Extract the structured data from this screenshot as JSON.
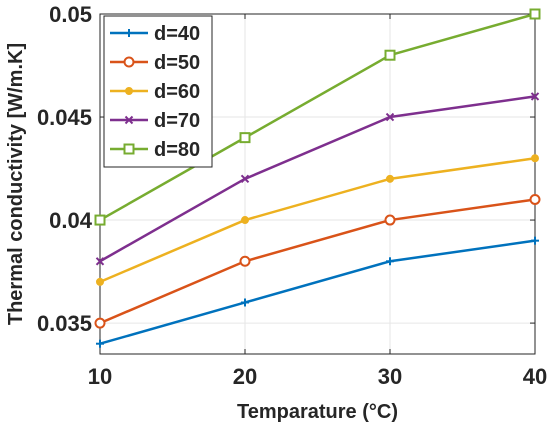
{
  "chart_data": {
    "type": "line",
    "xlabel": "Temparature (°C)",
    "ylabel": "Thermal conductivity [W/m.K]",
    "x": [
      10,
      20,
      30,
      40
    ],
    "xlim": [
      10,
      40
    ],
    "ylim": [
      0.0335,
      0.05
    ],
    "x_ticks": [
      "10",
      "20",
      "30",
      "40"
    ],
    "y_ticks": [
      "0.035",
      "0.04",
      "0.045",
      "0.05"
    ],
    "y_tick_values": [
      0.035,
      0.04,
      0.045,
      0.05
    ],
    "grid": true,
    "legend_position": "top-left",
    "series": [
      {
        "name": "d=40",
        "color": "#0072BD",
        "marker": "plus",
        "values": [
          0.034,
          0.036,
          0.038,
          0.039
        ]
      },
      {
        "name": "d=50",
        "color": "#D95319",
        "marker": "circle",
        "values": [
          0.035,
          0.038,
          0.04,
          0.041
        ]
      },
      {
        "name": "d=60",
        "color": "#EDB120",
        "marker": "dot",
        "values": [
          0.037,
          0.04,
          0.042,
          0.043
        ]
      },
      {
        "name": "d=70",
        "color": "#7E2F8E",
        "marker": "x",
        "values": [
          0.038,
          0.042,
          0.045,
          0.046
        ]
      },
      {
        "name": "d=80",
        "color": "#77AC30",
        "marker": "square",
        "values": [
          0.04,
          0.044,
          0.048,
          0.05
        ]
      }
    ]
  }
}
